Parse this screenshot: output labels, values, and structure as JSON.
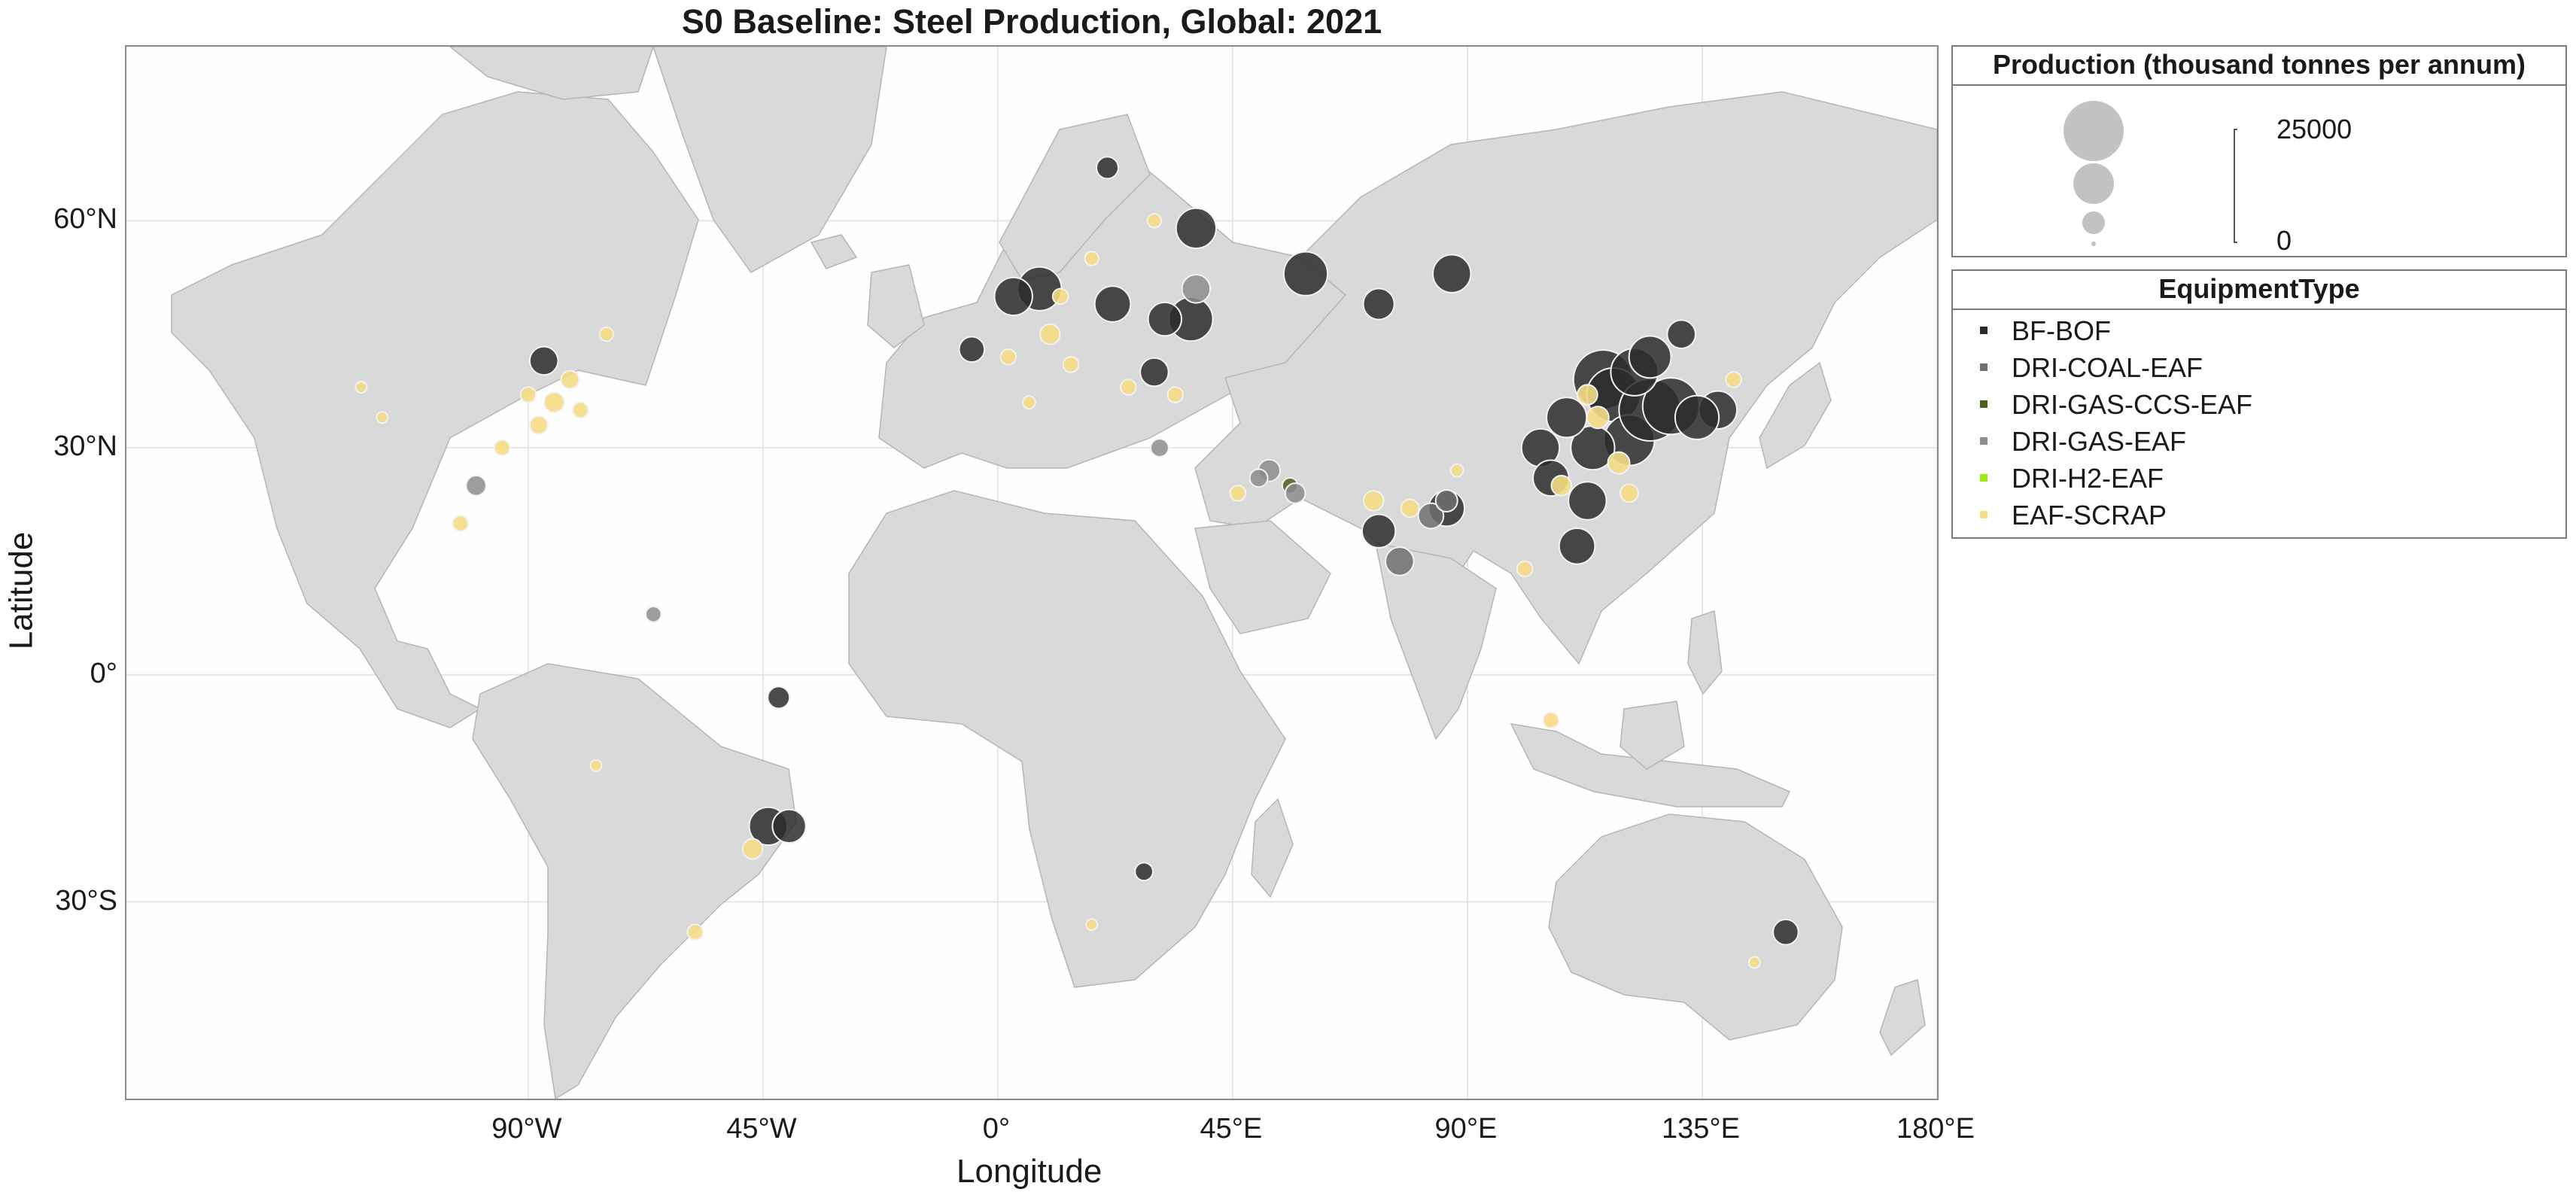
{
  "title": "S0 Baseline: Steel Production, Global: 2021",
  "map": {
    "background_land_color": "#d9d9d9",
    "ocean_color": "#ffffff",
    "xlabel": "Longitude",
    "ylabel": "Latitude",
    "lon_ticks": [
      {
        "lon": -90,
        "label": "90°W"
      },
      {
        "lon": -45,
        "label": "45°W"
      },
      {
        "lon": 0,
        "label": "0°"
      },
      {
        "lon": 45,
        "label": "45°E"
      },
      {
        "lon": 90,
        "label": "90°E"
      },
      {
        "lon": 135,
        "label": "135°E"
      },
      {
        "lon": 180,
        "label": "180°E"
      }
    ],
    "lat_ticks": [
      {
        "lat": 60,
        "label": "60°N"
      },
      {
        "lat": 30,
        "label": "30°N"
      },
      {
        "lat": 0,
        "label": "0°"
      },
      {
        "lat": -30,
        "label": "30°S"
      }
    ]
  },
  "size_legend": {
    "title": "Production (thousand tonnes per annum)",
    "max_label": "25000",
    "min_label": "0",
    "bubble_values": [
      25000,
      12500,
      5000,
      500
    ]
  },
  "type_legend": {
    "title": "EquipmentType",
    "items": [
      {
        "label": "BF-BOF",
        "color": "#2b2b2b"
      },
      {
        "label": "DRI-COAL-EAF",
        "color": "#6e6e6e"
      },
      {
        "label": "DRI-GAS-CCS-EAF",
        "color": "#4d6219"
      },
      {
        "label": "DRI-GAS-EAF",
        "color": "#8c8c8c"
      },
      {
        "label": "DRI-H2-EAF",
        "color": "#9bea14"
      },
      {
        "label": "EAF-SCRAP",
        "color": "#f6dc85"
      }
    ]
  },
  "chart_data": {
    "type": "scatter",
    "title": "S0 Baseline: Steel Production, Global: 2021",
    "xlabel": "Longitude",
    "ylabel": "Latitude",
    "xlim": [
      -167,
      180
    ],
    "ylim": [
      -56,
      83
    ],
    "size_unit": "thousand tonnes per annum",
    "size_range": [
      0,
      25000
    ],
    "series": [
      {
        "name": "BF-BOF",
        "points": [
          {
            "lon": 116,
            "lat": 39,
            "v": 22000
          },
          {
            "lon": 118,
            "lat": 37,
            "v": 18000
          },
          {
            "lon": 121,
            "lat": 31,
            "v": 16000
          },
          {
            "lon": 125,
            "lat": 35,
            "v": 24000
          },
          {
            "lon": 129,
            "lat": 35.5,
            "v": 20000
          },
          {
            "lon": 122,
            "lat": 40,
            "v": 14000
          },
          {
            "lon": 114,
            "lat": 30,
            "v": 12000
          },
          {
            "lon": 113,
            "lat": 23,
            "v": 9000
          },
          {
            "lon": 109,
            "lat": 34,
            "v": 10000
          },
          {
            "lon": 104,
            "lat": 30,
            "v": 9000
          },
          {
            "lon": 106,
            "lat": 26,
            "v": 8000
          },
          {
            "lon": 111,
            "lat": 17,
            "v": 8000
          },
          {
            "lon": 125,
            "lat": 42,
            "v": 11000
          },
          {
            "lon": 131,
            "lat": 45,
            "v": 5000
          },
          {
            "lon": 138,
            "lat": 35,
            "v": 9000
          },
          {
            "lon": 134,
            "lat": 34,
            "v": 12000
          },
          {
            "lon": 8,
            "lat": 51,
            "v": 12000
          },
          {
            "lon": 3,
            "lat": 50,
            "v": 9000
          },
          {
            "lon": 22,
            "lat": 49,
            "v": 8000
          },
          {
            "lon": 37,
            "lat": 47,
            "v": 12000
          },
          {
            "lon": 32,
            "lat": 47,
            "v": 7000
          },
          {
            "lon": 59,
            "lat": 53,
            "v": 12000
          },
          {
            "lon": 87,
            "lat": 53,
            "v": 9000
          },
          {
            "lon": 73,
            "lat": 49,
            "v": 6000
          },
          {
            "lon": 38,
            "lat": 59,
            "v": 10000
          },
          {
            "lon": -87,
            "lat": 41.5,
            "v": 5000
          },
          {
            "lon": -44,
            "lat": -20,
            "v": 9000
          },
          {
            "lon": -40,
            "lat": -20,
            "v": 7000
          },
          {
            "lon": -42,
            "lat": -3,
            "v": 3000
          },
          {
            "lon": 151,
            "lat": -34,
            "v": 4000
          },
          {
            "lon": 86,
            "lat": 22,
            "v": 8000
          },
          {
            "lon": 73,
            "lat": 19,
            "v": 7000
          },
          {
            "lon": 28,
            "lat": -26,
            "v": 2000
          },
          {
            "lon": 30,
            "lat": 40,
            "v": 5000
          },
          {
            "lon": 21,
            "lat": 67,
            "v": 3000
          },
          {
            "lon": -5,
            "lat": 43,
            "v": 4000
          }
        ]
      },
      {
        "name": "DRI-COAL-EAF",
        "points": [
          {
            "lon": 83,
            "lat": 21,
            "v": 4000
          },
          {
            "lon": 77,
            "lat": 15,
            "v": 5000
          },
          {
            "lon": 86,
            "lat": 23,
            "v": 3000
          }
        ]
      },
      {
        "name": "DRI-GAS-CCS-EAF",
        "points": [
          {
            "lon": 56,
            "lat": 25,
            "v": 1500
          }
        ]
      },
      {
        "name": "DRI-GAS-EAF",
        "points": [
          {
            "lon": 52,
            "lat": 27,
            "v": 3000
          },
          {
            "lon": 50,
            "lat": 26,
            "v": 2000
          },
          {
            "lon": 57,
            "lat": 24,
            "v": 2500
          },
          {
            "lon": -100,
            "lat": 25,
            "v": 2500
          },
          {
            "lon": -66,
            "lat": 8,
            "v": 1500
          },
          {
            "lon": 38,
            "lat": 51,
            "v": 5000
          },
          {
            "lon": 31,
            "lat": 30,
            "v": 2000
          }
        ]
      },
      {
        "name": "DRI-H2-EAF",
        "points": []
      },
      {
        "name": "EAF-SCRAP",
        "points": [
          {
            "lon": -85,
            "lat": 36,
            "v": 2500
          },
          {
            "lon": -88,
            "lat": 33,
            "v": 2000
          },
          {
            "lon": -82,
            "lat": 39,
            "v": 2000
          },
          {
            "lon": -90,
            "lat": 37,
            "v": 1500
          },
          {
            "lon": -95,
            "lat": 30,
            "v": 1500
          },
          {
            "lon": -80,
            "lat": 35,
            "v": 1500
          },
          {
            "lon": -122,
            "lat": 38,
            "v": 800
          },
          {
            "lon": -118,
            "lat": 34,
            "v": 800
          },
          {
            "lon": -103,
            "lat": 20,
            "v": 1500
          },
          {
            "lon": -75,
            "lat": 45,
            "v": 1200
          },
          {
            "lon": 2,
            "lat": 42,
            "v": 1500
          },
          {
            "lon": 10,
            "lat": 45,
            "v": 2500
          },
          {
            "lon": 14,
            "lat": 41,
            "v": 1500
          },
          {
            "lon": 25,
            "lat": 38,
            "v": 1500
          },
          {
            "lon": 34,
            "lat": 37,
            "v": 1500
          },
          {
            "lon": 12,
            "lat": 50,
            "v": 1500
          },
          {
            "lon": 18,
            "lat": 55,
            "v": 1200
          },
          {
            "lon": 46,
            "lat": 24,
            "v": 1500
          },
          {
            "lon": 72,
            "lat": 23,
            "v": 2500
          },
          {
            "lon": 79,
            "lat": 22,
            "v": 2000
          },
          {
            "lon": 88,
            "lat": 27,
            "v": 1000
          },
          {
            "lon": 101,
            "lat": 14,
            "v": 1500
          },
          {
            "lon": 106,
            "lat": -6,
            "v": 1500
          },
          {
            "lon": 115,
            "lat": 34,
            "v": 3000
          },
          {
            "lon": 119,
            "lat": 28,
            "v": 3000
          },
          {
            "lon": 113,
            "lat": 37,
            "v": 2500
          },
          {
            "lon": 108,
            "lat": 25,
            "v": 2500
          },
          {
            "lon": 121,
            "lat": 24,
            "v": 2000
          },
          {
            "lon": 141,
            "lat": 39,
            "v": 1500
          },
          {
            "lon": -58,
            "lat": -34,
            "v": 1500
          },
          {
            "lon": -47,
            "lat": -23,
            "v": 2500
          },
          {
            "lon": -77,
            "lat": -12,
            "v": 800
          },
          {
            "lon": 18,
            "lat": -33,
            "v": 800
          },
          {
            "lon": 145,
            "lat": -38,
            "v": 800
          },
          {
            "lon": 6,
            "lat": 36,
            "v": 1000
          },
          {
            "lon": 30,
            "lat": 60,
            "v": 1200
          }
        ]
      }
    ]
  }
}
